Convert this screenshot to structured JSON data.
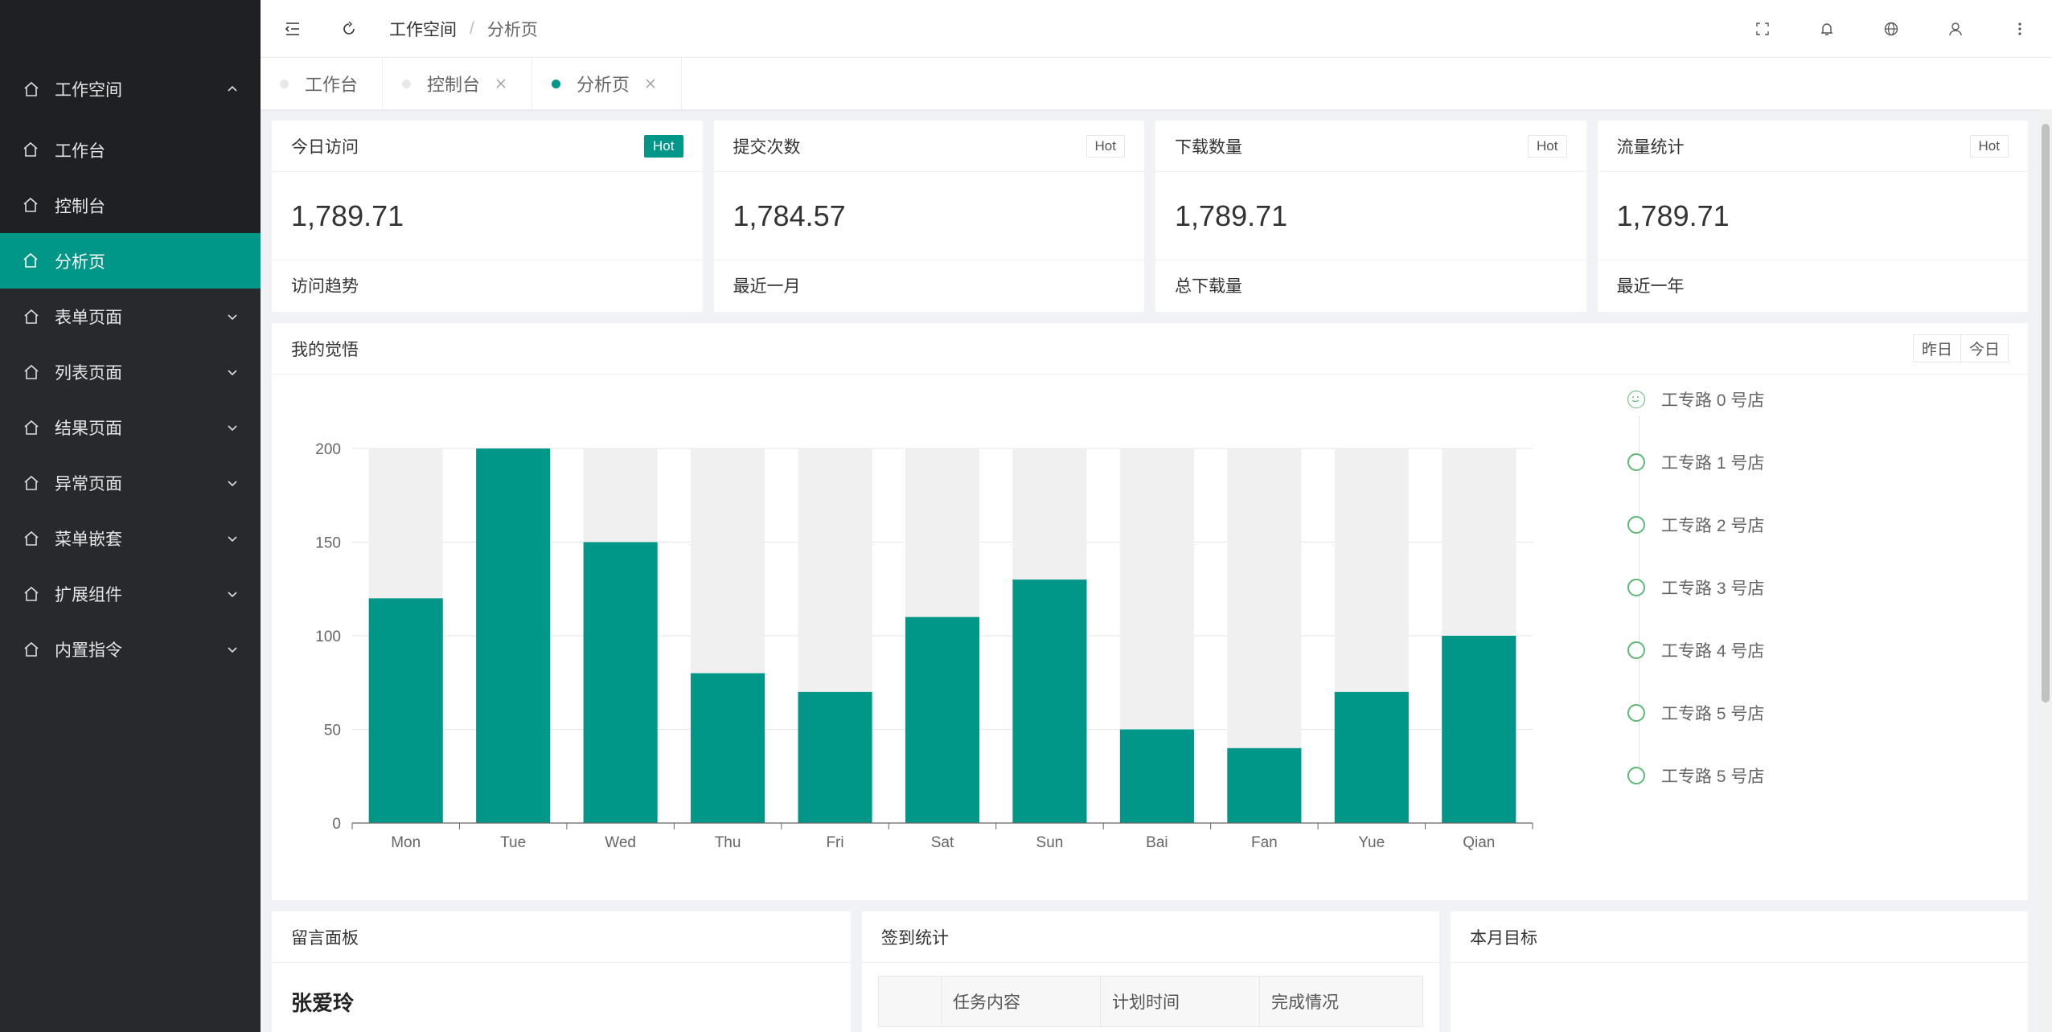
{
  "sidebar": {
    "group": {
      "label": "工作空间"
    },
    "sub_items": [
      {
        "label": "工作台"
      },
      {
        "label": "控制台"
      },
      {
        "label": "分析页"
      }
    ],
    "items": [
      {
        "label": "表单页面"
      },
      {
        "label": "列表页面"
      },
      {
        "label": "结果页面"
      },
      {
        "label": "异常页面"
      },
      {
        "label": "菜单嵌套"
      },
      {
        "label": "扩展组件"
      },
      {
        "label": "内置指令"
      }
    ]
  },
  "header": {
    "breadcrumb": [
      "工作空间",
      "分析页"
    ],
    "separator": "/"
  },
  "tabs": [
    {
      "label": "工作台"
    },
    {
      "label": "控制台"
    },
    {
      "label": "分析页"
    }
  ],
  "stats": [
    {
      "title": "今日访问",
      "badge": "Hot",
      "value": "1,789.71",
      "footer": "访问趋势"
    },
    {
      "title": "提交次数",
      "badge": "Hot",
      "value": "1,784.57",
      "footer": "最近一月"
    },
    {
      "title": "下载数量",
      "badge": "Hot",
      "value": "1,789.71",
      "footer": "总下载量"
    },
    {
      "title": "流量统计",
      "badge": "Hot",
      "value": "1,789.71",
      "footer": "最近一年"
    }
  ],
  "chart_panel": {
    "title": "我的觉悟",
    "toggle": [
      "昨日",
      "今日"
    ]
  },
  "chart_data": {
    "type": "bar",
    "categories": [
      "Mon",
      "Tue",
      "Wed",
      "Thu",
      "Fri",
      "Sat",
      "Sun",
      "Bai",
      "Fan",
      "Yue",
      "Qian"
    ],
    "values": [
      120,
      200,
      150,
      80,
      70,
      110,
      130,
      50,
      40,
      70,
      100
    ],
    "background_max": 200,
    "ylim": [
      0,
      200
    ],
    "yticks": [
      0,
      50,
      100,
      150,
      200
    ],
    "title": "",
    "xlabel": "",
    "ylabel": "",
    "grid": true,
    "colors": {
      "bar": "#009688",
      "background": "#f0f0f0"
    }
  },
  "timeline": [
    {
      "label": "工专路 0 号店"
    },
    {
      "label": "工专路 1 号店"
    },
    {
      "label": "工专路 2 号店"
    },
    {
      "label": "工专路 3 号店"
    },
    {
      "label": "工专路 4 号店"
    },
    {
      "label": "工专路 5 号店"
    },
    {
      "label": "工专路 5 号店"
    }
  ],
  "bottom": {
    "message_panel": {
      "title": "留言面板",
      "name": "张爱玲"
    },
    "checkin_panel": {
      "title": "签到统计",
      "columns": [
        "",
        "任务内容",
        "计划时间",
        "完成情况"
      ]
    },
    "goal_panel": {
      "title": "本月目标"
    }
  },
  "colors": {
    "accent": "#009688",
    "sidebar": "#28292d",
    "sidebar_sub": "#1f2023"
  }
}
